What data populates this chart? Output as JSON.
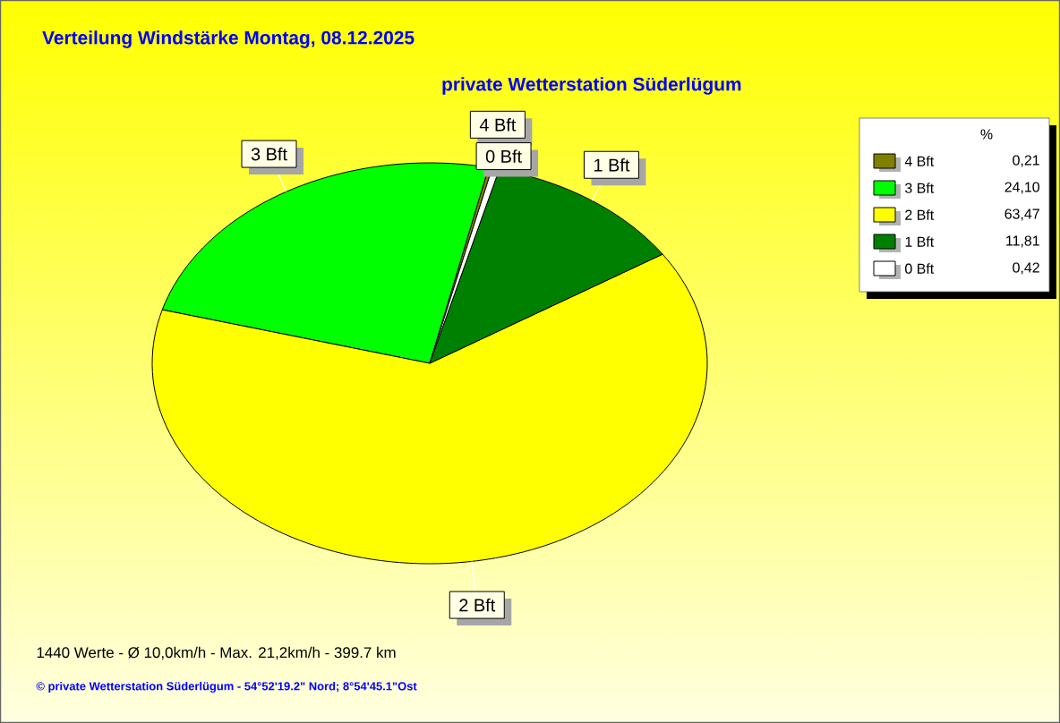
{
  "chart_data": {
    "type": "pie",
    "title": "Verteilung Windstärke  Montag, 08.12.2025",
    "subtitle": "private Wetterstation Süderlügum",
    "legend_title": "%",
    "legend": "top right",
    "categories": [
      "4 Bft",
      "3 Bft",
      "2 Bft",
      "1 Bft",
      "0 Bft"
    ],
    "values": [
      0.21,
      24.1,
      63.47,
      11.81,
      0.42
    ],
    "value_labels": [
      "0,21",
      "24,10",
      "63,47",
      "11,81",
      "0,42"
    ],
    "colors": [
      "#808000",
      "#00ff00",
      "#ffff00",
      "#008000",
      "#ffffff"
    ],
    "annotations": [
      "1440 Werte   -   Ø 10,0km/h  -  Max. 21,2km/h   -   399.7 km",
      "© private Wetterstation Süderlügum   -   54°52'19.2\" Nord; 8°54'45.1\"Ost"
    ]
  }
}
